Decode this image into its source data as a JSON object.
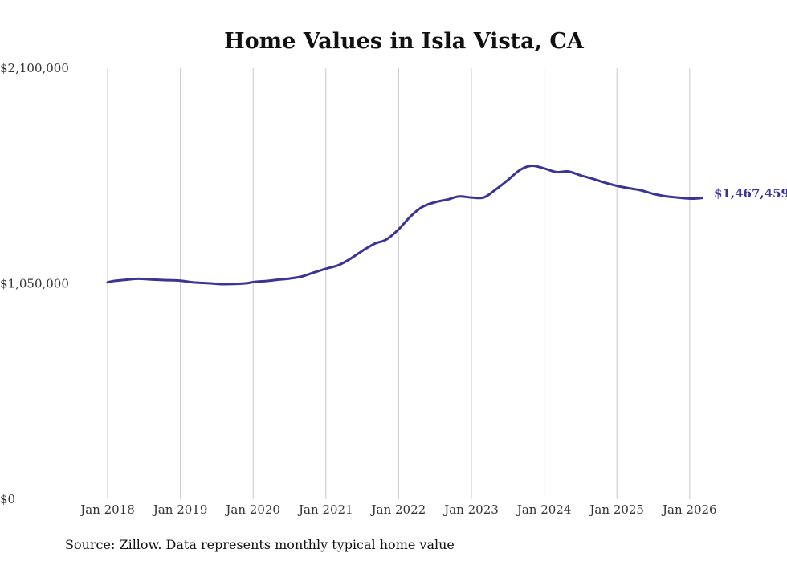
{
  "chart_data": {
    "type": "line",
    "title": "Home Values in Isla Vista, CA",
    "xlabel": "",
    "ylabel": "",
    "ylim": [
      0,
      2100000
    ],
    "y_ticks": [
      {
        "value": 0,
        "label": "$0"
      },
      {
        "value": 1050000,
        "label": "$1,050,000"
      },
      {
        "value": 2100000,
        "label": "$2,100,000"
      }
    ],
    "x_ticks": [
      {
        "value": 2018.0,
        "label": "Jan 2018"
      },
      {
        "value": 2019.0,
        "label": "Jan 2019"
      },
      {
        "value": 2020.0,
        "label": "Jan 2020"
      },
      {
        "value": 2021.0,
        "label": "Jan 2021"
      },
      {
        "value": 2022.0,
        "label": "Jan 2022"
      },
      {
        "value": 2023.0,
        "label": "Jan 2023"
      },
      {
        "value": 2024.0,
        "label": "Jan 2024"
      },
      {
        "value": 2025.0,
        "label": "Jan 2025"
      },
      {
        "value": 2026.0,
        "label": "Jan 2026"
      }
    ],
    "xlim": [
      2018.0,
      2026.17
    ],
    "grid": "vertical",
    "color": "#3b3591",
    "series": [
      {
        "name": "Typical home value",
        "x": [
          2018.0,
          2018.08,
          2018.25,
          2018.42,
          2018.58,
          2018.75,
          2019.0,
          2019.17,
          2019.42,
          2019.58,
          2019.75,
          2019.92,
          2020.0,
          2020.17,
          2020.33,
          2020.5,
          2020.67,
          2020.83,
          2021.0,
          2021.17,
          2021.33,
          2021.5,
          2021.67,
          2021.83,
          2022.0,
          2022.17,
          2022.33,
          2022.5,
          2022.67,
          2022.83,
          2023.0,
          2023.17,
          2023.33,
          2023.5,
          2023.67,
          2023.83,
          2024.0,
          2024.17,
          2024.33,
          2024.5,
          2024.67,
          2024.83,
          2025.0,
          2025.17,
          2025.33,
          2025.5,
          2025.67,
          2025.83,
          2026.0,
          2026.08,
          2026.17
        ],
        "values": [
          1057000,
          1063000,
          1069000,
          1074000,
          1071000,
          1068000,
          1065000,
          1057000,
          1052000,
          1048000,
          1049000,
          1053000,
          1058000,
          1063000,
          1069000,
          1075000,
          1085000,
          1104000,
          1123000,
          1140000,
          1170000,
          1210000,
          1245000,
          1265000,
          1315000,
          1380000,
          1425000,
          1447000,
          1460000,
          1475000,
          1470000,
          1470000,
          1508000,
          1555000,
          1605000,
          1625000,
          1612000,
          1594000,
          1597000,
          1578000,
          1561000,
          1543000,
          1527000,
          1515000,
          1505000,
          1488000,
          1476000,
          1470000,
          1465000,
          1465000,
          1467459
        ]
      }
    ],
    "end_label": "$1,467,459",
    "source": "Source: Zillow. Data represents monthly typical home value"
  }
}
